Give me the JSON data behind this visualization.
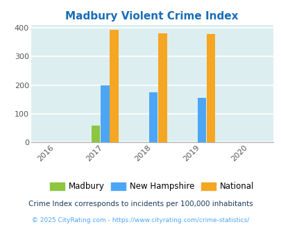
{
  "title": "Madbury Violent Crime Index",
  "title_color": "#1a6db5",
  "years": [
    2016,
    2017,
    2018,
    2019,
    2020
  ],
  "bar_width": 0.18,
  "madbury": {
    "2017": 57,
    "2018": 0,
    "2019": 0
  },
  "nh": {
    "2017": 200,
    "2018": 174,
    "2019": 155
  },
  "national": {
    "2017": 394,
    "2018": 382,
    "2019": 379
  },
  "colors": {
    "madbury": "#8dc63f",
    "nh": "#4da6f5",
    "national": "#f5a623"
  },
  "bg_color": "#ddeef0",
  "ylim": [
    0,
    410
  ],
  "yticks": [
    0,
    100,
    200,
    300,
    400
  ],
  "legend_labels": [
    "Madbury",
    "New Hampshire",
    "National"
  ],
  "footnote1": "Crime Index corresponds to incidents per 100,000 inhabitants",
  "footnote2": "© 2025 CityRating.com - https://www.cityrating.com/crime-statistics/",
  "footnote1_color": "#1a3a5c",
  "footnote2_color": "#4da6f5"
}
